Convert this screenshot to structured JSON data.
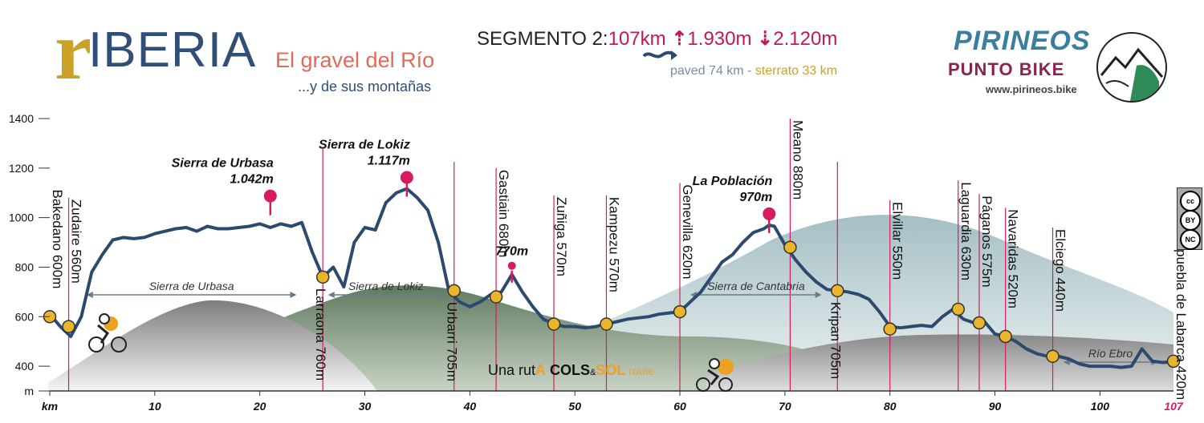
{
  "header": {
    "brand_r": "r",
    "brand_rest": "IBERIA",
    "tagline": "El gravel del Río",
    "subline": "...y de sus montañas",
    "segment_label": "SEGMENTO 2:",
    "distance": "107km",
    "ascent": "1.930m",
    "descent": "2.120m",
    "paved": "paved 74 km",
    "sep": " - ",
    "sterrato": "sterrato 33 km"
  },
  "sponsor": {
    "name": "PIRINEOS",
    "sub": "PUNTO BIKE",
    "url": "www.pirineos.bike"
  },
  "route_badge": {
    "prefix": "Una rut",
    "a": "A",
    "cols": "COLS",
    "amp": "&",
    "sol": "SOL",
    "route": " route"
  },
  "license": {
    "c1": "cc",
    "c2": "BY",
    "c3": "NC",
    "c4": "$"
  },
  "colors": {
    "profile_line": "#2c4a6e",
    "waypoint_fill": "#e8b52b",
    "summit": "#d81b60",
    "marker_line": "#d81b60",
    "mtn_gray": "#8a8a8a",
    "mtn_green": "#5f7a5f",
    "mtn_blue": "#a9c2c8"
  },
  "chart_data": {
    "type": "area",
    "xlabel": "km",
    "ylabel": "m",
    "xlim": [
      0,
      107
    ],
    "ylim": [
      300,
      1400
    ],
    "x_ticks": [
      "km",
      "10",
      "20",
      "30",
      "40",
      "50",
      "60",
      "70",
      "80",
      "90",
      "100"
    ],
    "x_tick_values": [
      0,
      10,
      20,
      30,
      40,
      50,
      60,
      70,
      80,
      90,
      100
    ],
    "x_end_label": "107",
    "y_ticks": [
      "m",
      "400",
      "600",
      "800",
      "1000",
      "1200",
      "1400"
    ],
    "y_tick_values": [
      300,
      400,
      600,
      800,
      1000,
      1200,
      1400
    ],
    "profile": {
      "x": [
        0,
        1,
        2,
        3,
        4,
        5,
        6,
        7,
        8,
        9,
        10,
        11,
        12,
        13,
        14,
        15,
        16,
        17,
        18,
        19,
        20,
        21,
        22,
        23,
        24,
        25,
        26,
        27,
        28,
        29,
        30,
        31,
        32,
        33,
        34,
        35,
        36,
        37,
        38,
        39,
        40,
        41,
        42,
        43,
        44,
        45,
        46,
        47,
        48,
        49,
        50,
        51,
        52,
        53,
        54,
        55,
        56,
        57,
        58,
        59,
        60,
        61,
        62,
        63,
        64,
        65,
        66,
        67,
        68,
        68.5,
        69,
        70,
        71,
        72,
        73,
        74,
        75,
        76,
        77,
        78,
        79,
        80,
        81,
        82,
        83,
        84,
        85,
        86,
        87,
        88,
        89,
        90,
        91,
        92,
        93,
        94,
        95,
        96,
        97,
        98,
        99,
        100,
        101,
        102,
        103,
        104,
        105,
        106,
        107
      ],
      "y": [
        610,
        560,
        520,
        600,
        780,
        850,
        910,
        920,
        915,
        920,
        935,
        945,
        955,
        960,
        945,
        965,
        955,
        955,
        960,
        965,
        975,
        960,
        975,
        965,
        980,
        860,
        760,
        800,
        720,
        900,
        960,
        950,
        1060,
        1100,
        1117,
        1080,
        1030,
        900,
        705,
        660,
        640,
        660,
        690,
        700,
        770,
        700,
        640,
        590,
        570,
        560,
        560,
        555,
        560,
        570,
        580,
        590,
        595,
        600,
        610,
        615,
        620,
        660,
        700,
        760,
        820,
        850,
        900,
        940,
        955,
        970,
        965,
        890,
        830,
        780,
        740,
        710,
        705,
        700,
        690,
        670,
        620,
        560,
        555,
        560,
        565,
        560,
        600,
        630,
        590,
        575,
        580,
        530,
        520,
        500,
        470,
        450,
        440,
        440,
        430,
        410,
        400,
        400,
        400,
        395,
        400,
        470,
        420,
        415,
        420
      ]
    },
    "waypoints": [
      {
        "name": "Bakedano 600m",
        "km": 0,
        "elev": 600
      },
      {
        "name": "Zudaire 560m",
        "km": 1.8,
        "elev": 560
      },
      {
        "name": "Larraona 760m",
        "km": 26,
        "elev": 760
      },
      {
        "name": "Urbarri 705m",
        "km": 38.5,
        "elev": 705
      },
      {
        "name": "Gastiain 680m",
        "km": 42.5,
        "elev": 680
      },
      {
        "name": "Zuñiga 570m",
        "km": 48,
        "elev": 570
      },
      {
        "name": "Kampezu 570m",
        "km": 53,
        "elev": 570
      },
      {
        "name": "Genevilla 620m",
        "km": 60,
        "elev": 620
      },
      {
        "name": "Meano 880m",
        "km": 70.5,
        "elev": 880
      },
      {
        "name": "Kripan 705m",
        "km": 75,
        "elev": 705
      },
      {
        "name": "Elvillar 550m",
        "km": 80,
        "elev": 550
      },
      {
        "name": "Laguardia 630m",
        "km": 86.5,
        "elev": 630
      },
      {
        "name": "Páganos 575m",
        "km": 88.5,
        "elev": 575
      },
      {
        "name": "Navaridas 520m",
        "km": 91,
        "elev": 520
      },
      {
        "name": "Elciego 440m",
        "km": 95.5,
        "elev": 440
      },
      {
        "name": "Lapuebla de Labarca 420m",
        "km": 107,
        "elev": 420
      }
    ],
    "summits": [
      {
        "name": "Sierra de Urbasa",
        "elev_label": "1.042m",
        "km": 21,
        "elev": 1042
      },
      {
        "name": "Sierra de Lokiz",
        "elev_label": "1.117m",
        "km": 34,
        "elev": 1117
      },
      {
        "name": "",
        "elev_label": "770m",
        "km": 44,
        "elev": 770
      },
      {
        "name": "La Población",
        "elev_label": "970m",
        "km": 68.5,
        "elev": 970
      }
    ],
    "ranges": [
      {
        "name": "Sierra de Urbasa",
        "from": 3.5,
        "to": 23.5
      },
      {
        "name": "Sierra de Lokiz",
        "from": 26.5,
        "to": 37.5
      },
      {
        "name": "Sierra de Cantabria",
        "from": 61,
        "to": 73.5
      },
      {
        "name": "Río Ebro",
        "from": 96.5,
        "to": 105.5
      }
    ]
  }
}
